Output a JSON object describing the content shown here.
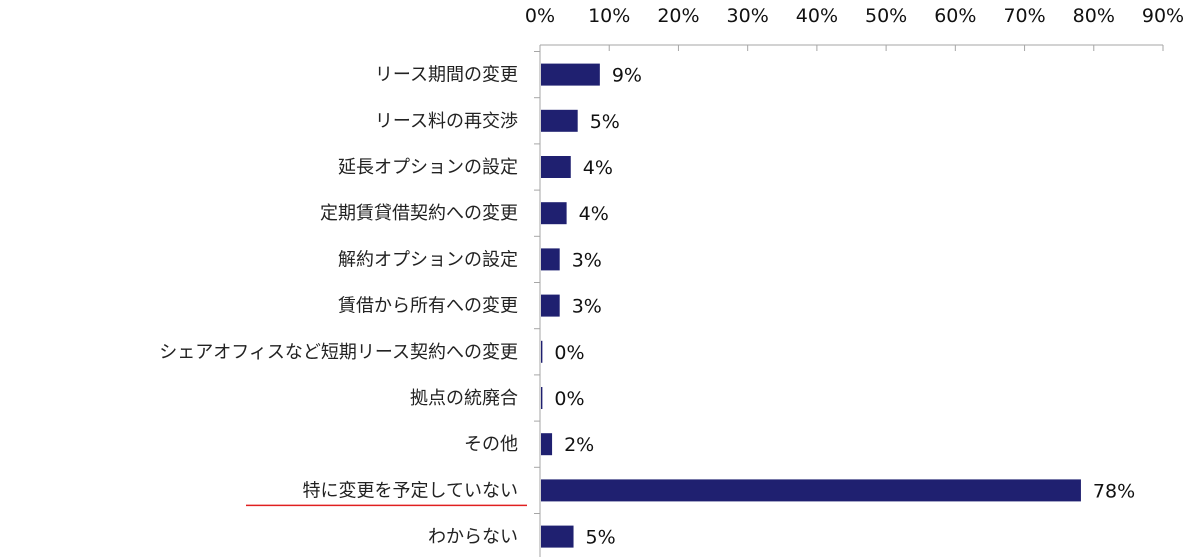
{
  "chart_data": {
    "type": "bar",
    "orientation": "horizontal",
    "title": "",
    "xlabel": "",
    "ylabel": "",
    "xlim": [
      0,
      90
    ],
    "x_tick_labels": [
      "0%",
      "10%",
      "20%",
      "30%",
      "40%",
      "50%",
      "60%",
      "70%",
      "80%",
      "90%"
    ],
    "x_axis_position": "top",
    "grid": false,
    "categories": [
      "リース期間の変更",
      "リース料の再交渉",
      "延長オプションの設定",
      "定期賃貸借契約への変更",
      "解約オプションの設定",
      "賃借から所有への変更",
      "シェアオフィスなど短期リース契約への変更",
      "拠点の統廃合",
      "その他",
      "特に変更を予定していない",
      "わからない"
    ],
    "values": [
      9,
      5,
      4,
      4,
      3,
      3,
      0,
      0,
      2,
      78,
      5
    ],
    "plotted_values": [
      8.5,
      5.3,
      4.3,
      3.7,
      2.7,
      2.7,
      0.2,
      0.2,
      1.6,
      78,
      4.7
    ],
    "data_labels": [
      "9%",
      "5%",
      "4%",
      "4%",
      "3%",
      "3%",
      "0%",
      "0%",
      "2%",
      "78%",
      "5%"
    ],
    "highlighted_category": "特に変更を予定していない",
    "colors": {
      "bar": "#1f2070",
      "axis": "#a6a6a6",
      "highlight_underline": "#e02020"
    }
  }
}
